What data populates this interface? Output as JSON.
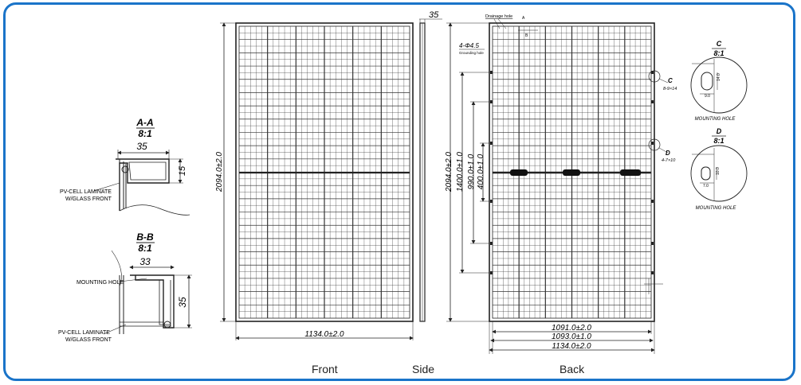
{
  "section_aa": {
    "title": "A-A",
    "scale": "8:1",
    "dim_width": "35",
    "dim_height": "15",
    "laminate_label_1": "PV-CELL LAMINATE",
    "laminate_label_2": "W/GLASS FRONT"
  },
  "section_bb": {
    "title": "B-B",
    "scale": "8:1",
    "dim_width": "33",
    "dim_height": "35",
    "mounting_label": "MOUNTING HOLE",
    "laminate_label_1": "PV-CELL LAMINATE",
    "laminate_label_2": "W/GLASS FRONT"
  },
  "front": {
    "height_dim": "2094.0±2.0",
    "width_dim": "1134.0±2.0",
    "caption": "Front"
  },
  "side": {
    "thickness_dim": "35",
    "caption": "Side"
  },
  "back": {
    "drainage_label": "Drainage hole",
    "grounding_count": "4-Φ4.5",
    "grounding_label": "Grounding hole",
    "marker_a": "A",
    "marker_b": "B",
    "height_dims": [
      "2094.0±2.0",
      "1400.0±1.0",
      "990.0±1.0",
      "400.0±1.0"
    ],
    "width_dims": [
      "1091.0±2.0",
      "1093.0±1.0",
      "1134.0±2.0"
    ],
    "callout_c_letter": "C",
    "callout_c_text": "8-9×14",
    "callout_d_letter": "D",
    "callout_d_text": "4-7×10",
    "caption": "Back"
  },
  "detail_c": {
    "title": "C",
    "scale": "8:1",
    "dim_a": "9.0",
    "dim_b": "14.0",
    "label": "MOUNTING HOLE"
  },
  "detail_d": {
    "title": "D",
    "scale": "8:1",
    "dim_a": "7.0",
    "dim_b": "10.0",
    "label": "MOUNTING HOLE"
  }
}
